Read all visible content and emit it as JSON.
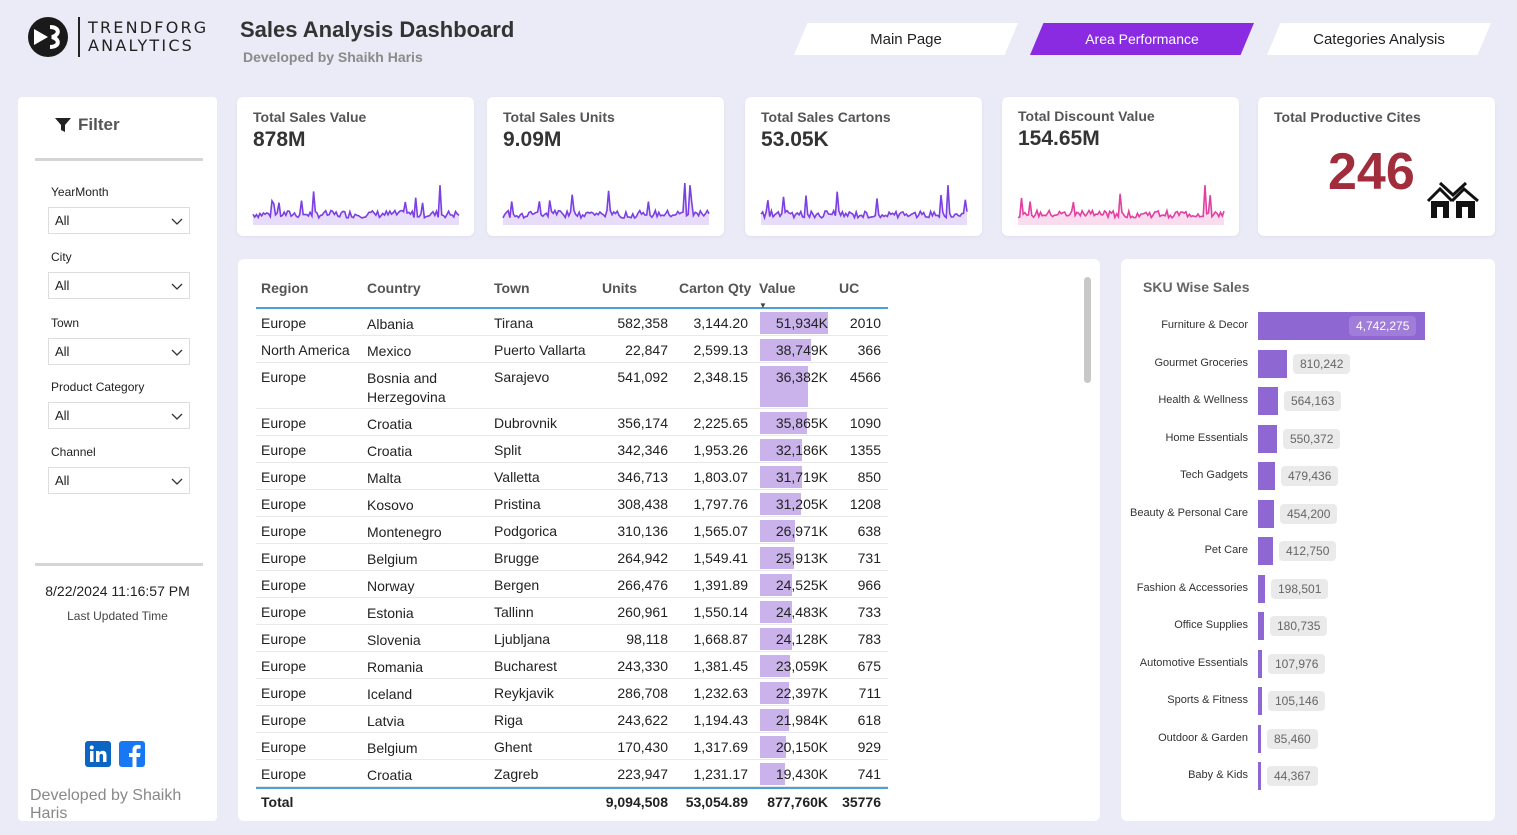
{
  "header": {
    "logo_line1": "TRENDFORG",
    "logo_line2": "ANALYTICS",
    "title": "Sales Analysis Dashboard",
    "subtitle": "Developed by Shaikh Haris"
  },
  "nav": {
    "tabs": [
      {
        "label": "Main Page",
        "active": false
      },
      {
        "label": "Area Performance",
        "active": true
      },
      {
        "label": "Categories Analysis",
        "active": false
      }
    ],
    "active_color": "#8a2be2"
  },
  "filter": {
    "title": "Filter",
    "fields": [
      {
        "label": "YearMonth",
        "value": "All"
      },
      {
        "label": "City",
        "value": "All"
      },
      {
        "label": "Town",
        "value": "All"
      },
      {
        "label": "Product Category",
        "value": "All"
      },
      {
        "label": "Channel",
        "value": "All"
      }
    ],
    "updated_time": "8/22/2024 11:16:57 PM",
    "updated_label": "Last Updated Time",
    "footer": "Developed by Shaikh Haris",
    "social_icons": [
      "linkedin-icon",
      "facebook-icon"
    ]
  },
  "kpis": [
    {
      "title": "Total Sales Value",
      "value": "878M",
      "color": "#7b3fe4"
    },
    {
      "title": "Total Sales Units",
      "value": "9.09M",
      "color": "#7b3fe4"
    },
    {
      "title": "Total Sales Cartons",
      "value": "53.05K",
      "color": "#7b3fe4"
    },
    {
      "title": "Total Discount Value",
      "value": "154.65M",
      "color": "#e040a0"
    },
    {
      "title": "Total Productive Cites",
      "value": "246",
      "color": "#a02c3c",
      "icon": "houses-icon"
    }
  ],
  "table": {
    "columns": [
      "Region",
      "Country",
      "Town",
      "Units",
      "Carton Qty",
      "Value",
      "UC"
    ],
    "sorted_column": "Value",
    "rows": [
      [
        "Europe",
        "Albania",
        "Tirana",
        "582,358",
        "3,144.20",
        "51,934K",
        "2010"
      ],
      [
        "North America",
        "Mexico",
        "Puerto Vallarta",
        "22,847",
        "2,599.13",
        "38,749K",
        "366"
      ],
      [
        "Europe",
        "Bosnia and Herzegovina",
        "Sarajevo",
        "541,092",
        "2,348.15",
        "36,382K",
        "4566"
      ],
      [
        "Europe",
        "Croatia",
        "Dubrovnik",
        "356,174",
        "2,225.65",
        "35,865K",
        "1090"
      ],
      [
        "Europe",
        "Croatia",
        "Split",
        "342,346",
        "1,953.26",
        "32,186K",
        "1355"
      ],
      [
        "Europe",
        "Malta",
        "Valletta",
        "346,713",
        "1,803.07",
        "31,719K",
        "850"
      ],
      [
        "Europe",
        "Kosovo",
        "Pristina",
        "308,438",
        "1,797.76",
        "31,205K",
        "1208"
      ],
      [
        "Europe",
        "Montenegro",
        "Podgorica",
        "310,136",
        "1,565.07",
        "26,971K",
        "638"
      ],
      [
        "Europe",
        "Belgium",
        "Brugge",
        "264,942",
        "1,549.41",
        "25,913K",
        "731"
      ],
      [
        "Europe",
        "Norway",
        "Bergen",
        "266,476",
        "1,391.89",
        "24,525K",
        "966"
      ],
      [
        "Europe",
        "Estonia",
        "Tallinn",
        "260,961",
        "1,550.14",
        "24,483K",
        "733"
      ],
      [
        "Europe",
        "Slovenia",
        "Ljubljana",
        "98,118",
        "1,668.87",
        "24,128K",
        "783"
      ],
      [
        "Europe",
        "Romania",
        "Bucharest",
        "243,330",
        "1,381.45",
        "23,059K",
        "675"
      ],
      [
        "Europe",
        "Iceland",
        "Reykjavik",
        "286,708",
        "1,232.63",
        "22,397K",
        "711"
      ],
      [
        "Europe",
        "Latvia",
        "Riga",
        "243,622",
        "1,194.43",
        "21,984K",
        "618"
      ],
      [
        "Europe",
        "Belgium",
        "Ghent",
        "170,430",
        "1,317.69",
        "20,150K",
        "929"
      ],
      [
        "Europe",
        "Croatia",
        "Zagreb",
        "223,947",
        "1,231.17",
        "19,430K",
        "741"
      ]
    ],
    "total": [
      "Total",
      "",
      "",
      "9,094,508",
      "53,054.89",
      "877,760K",
      "35776"
    ],
    "bar_color": "#c9b3ea"
  },
  "sku": {
    "title": "SKU Wise Sales",
    "bar_color": "#8f67d2",
    "items": [
      {
        "label": "Furniture & Decor",
        "value": 4742275,
        "display": "4,742,275"
      },
      {
        "label": "Gourmet Groceries",
        "value": 810242,
        "display": "810,242"
      },
      {
        "label": "Health & Wellness",
        "value": 564163,
        "display": "564,163"
      },
      {
        "label": "Home Essentials",
        "value": 550372,
        "display": "550,372"
      },
      {
        "label": "Tech Gadgets",
        "value": 479436,
        "display": "479,436"
      },
      {
        "label": "Beauty & Personal Care",
        "value": 454200,
        "display": "454,200"
      },
      {
        "label": "Pet Care",
        "value": 412750,
        "display": "412,750"
      },
      {
        "label": "Fashion & Accessories",
        "value": 198501,
        "display": "198,501"
      },
      {
        "label": "Office Supplies",
        "value": 180735,
        "display": "180,735"
      },
      {
        "label": "Automotive Essentials",
        "value": 107976,
        "display": "107,976"
      },
      {
        "label": "Sports & Fitness",
        "value": 105146,
        "display": "105,146"
      },
      {
        "label": "Outdoor & Garden",
        "value": 85460,
        "display": "85,460"
      },
      {
        "label": "Baby & Kids",
        "value": 44367,
        "display": "44,367"
      }
    ]
  }
}
